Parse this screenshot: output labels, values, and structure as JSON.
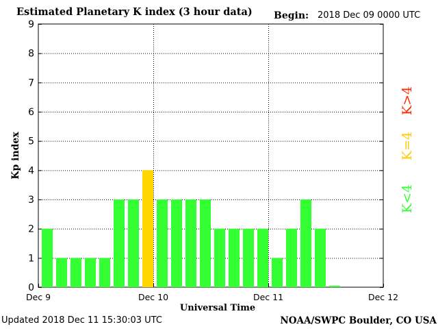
{
  "header": {
    "title": "Estimated Planetary K index (3 hour data)",
    "begin_label": "Begin:",
    "begin_value": "2018 Dec 09 0000 UTC"
  },
  "footer": {
    "updated": "Updated 2018 Dec 11 15:30:03 UTC",
    "source": "NOAA/SWPC Boulder, CO USA"
  },
  "legend": {
    "items": [
      {
        "label": "K<4",
        "color": "#33ff33"
      },
      {
        "label": "K=4",
        "color": "#ffcc00"
      },
      {
        "label": "K>4",
        "color": "#ff2a00"
      }
    ]
  },
  "chart_data": {
    "type": "bar",
    "title": "Estimated Planetary K index (3 hour data)",
    "xlabel": "Universal Time",
    "ylabel": "Kp index",
    "ylim": [
      0,
      9
    ],
    "yticks": [
      0,
      1,
      2,
      3,
      4,
      5,
      6,
      7,
      8,
      9
    ],
    "x_tick_labels": [
      "Dec 9",
      "Dec 10",
      "Dec 11",
      "Dec 12"
    ],
    "slots_per_day": 8,
    "days": 3,
    "values": [
      2,
      1,
      1,
      1,
      1,
      3,
      3,
      4,
      3,
      3,
      3,
      3,
      2,
      2,
      2,
      2,
      1,
      2,
      3,
      2,
      0.05
    ],
    "threshold_colors": {
      "below4": "#33ff33",
      "equal4": "#ffd700",
      "above4": "#ff2a00"
    },
    "grid": true,
    "legend_position": "right"
  }
}
